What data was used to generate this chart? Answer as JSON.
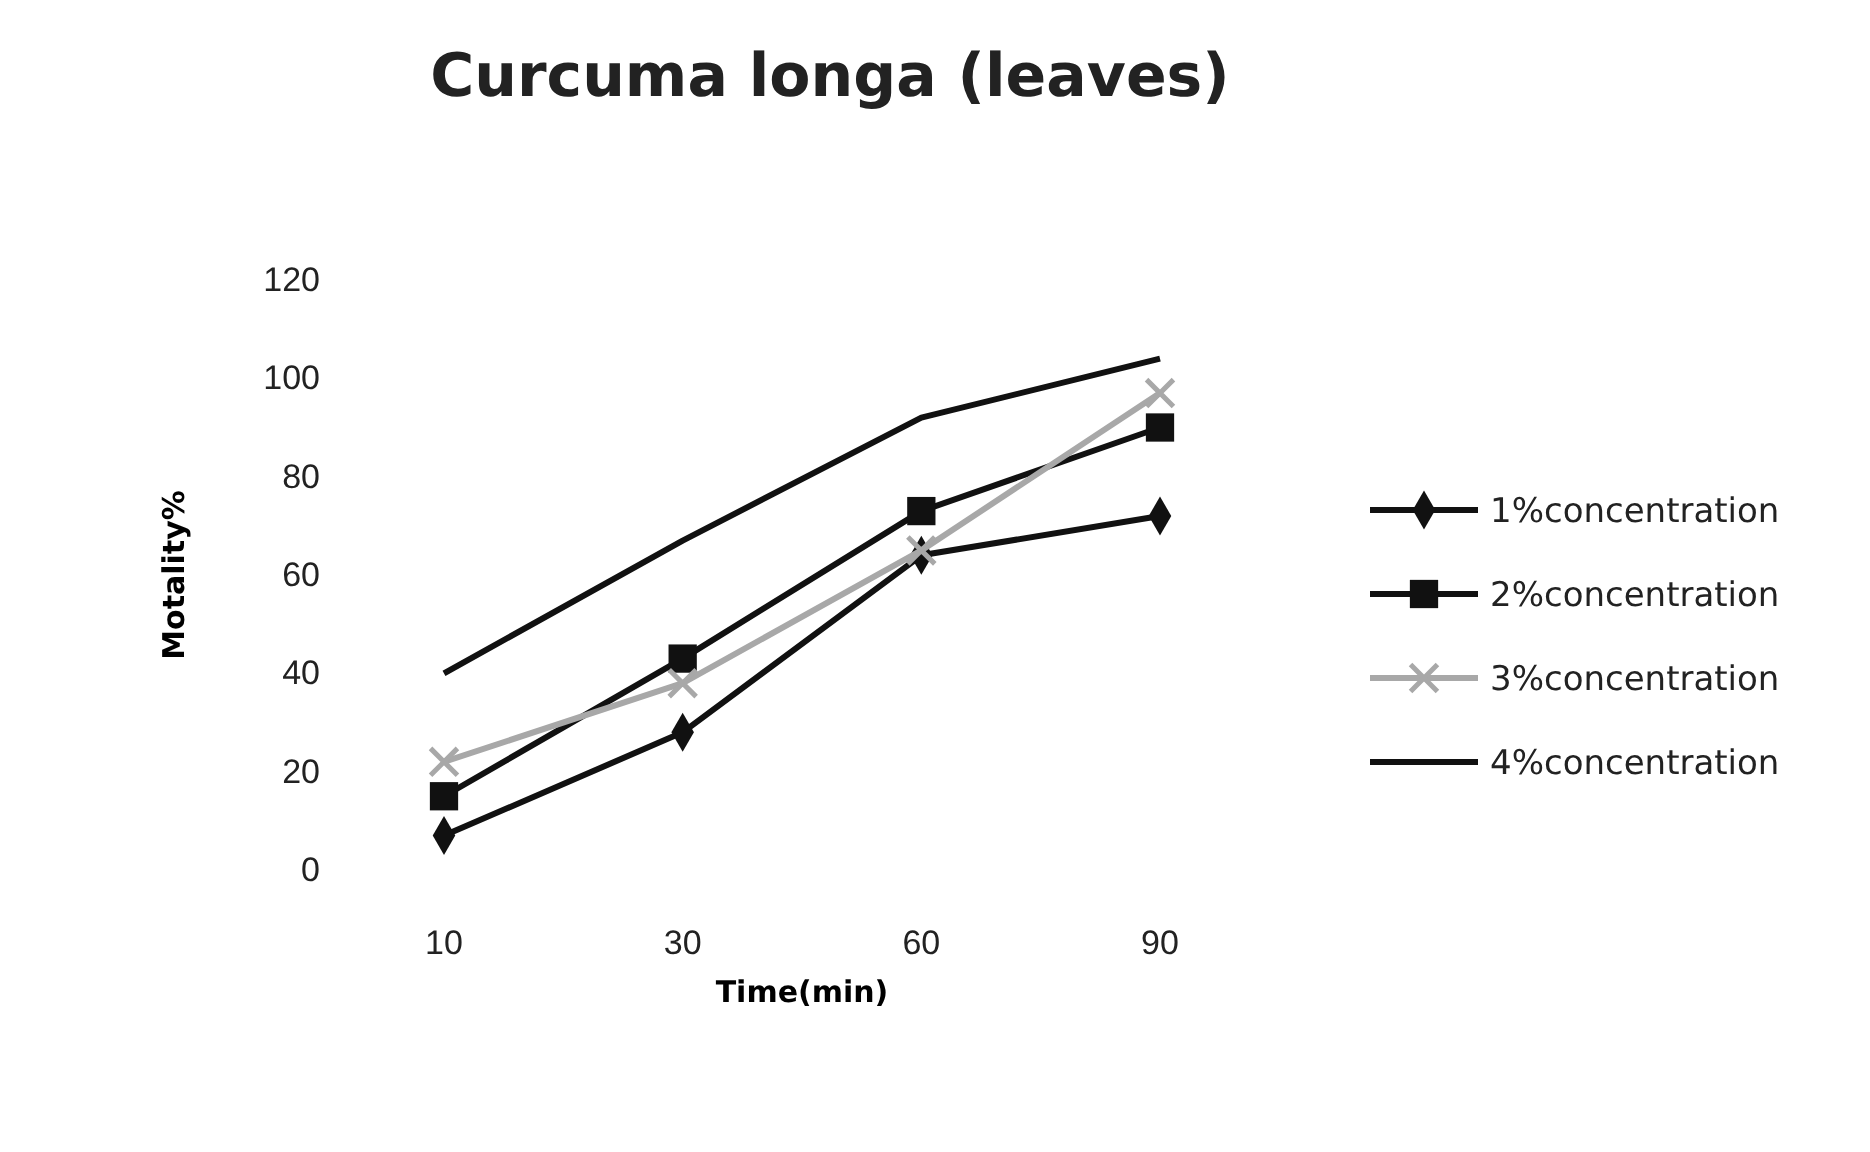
{
  "chart_data": {
    "type": "line",
    "title": "Curcuma longa (leaves)",
    "xlabel": "Time(min)",
    "ylabel": "Motality%",
    "categories": [
      "10",
      "30",
      "60",
      "90"
    ],
    "ylim": [
      0,
      120
    ],
    "yticks": [
      0,
      20,
      40,
      60,
      80,
      100,
      120
    ],
    "grid": false,
    "legend": "right",
    "line_style": "solid",
    "series": [
      {
        "name": "1%concentration",
        "color": "#111111",
        "marker": "diamond",
        "values": [
          7,
          28,
          64,
          72
        ]
      },
      {
        "name": "2%concentration",
        "color": "#111111",
        "marker": "square",
        "values": [
          15,
          43,
          73,
          90
        ]
      },
      {
        "name": "3%concentration",
        "color": "#a8a8a8",
        "marker": "cross",
        "values": [
          22,
          38,
          65,
          97
        ]
      },
      {
        "name": "4%concentration",
        "color": "#111111",
        "marker": "none",
        "values": [
          40,
          67,
          92,
          104
        ]
      }
    ]
  }
}
